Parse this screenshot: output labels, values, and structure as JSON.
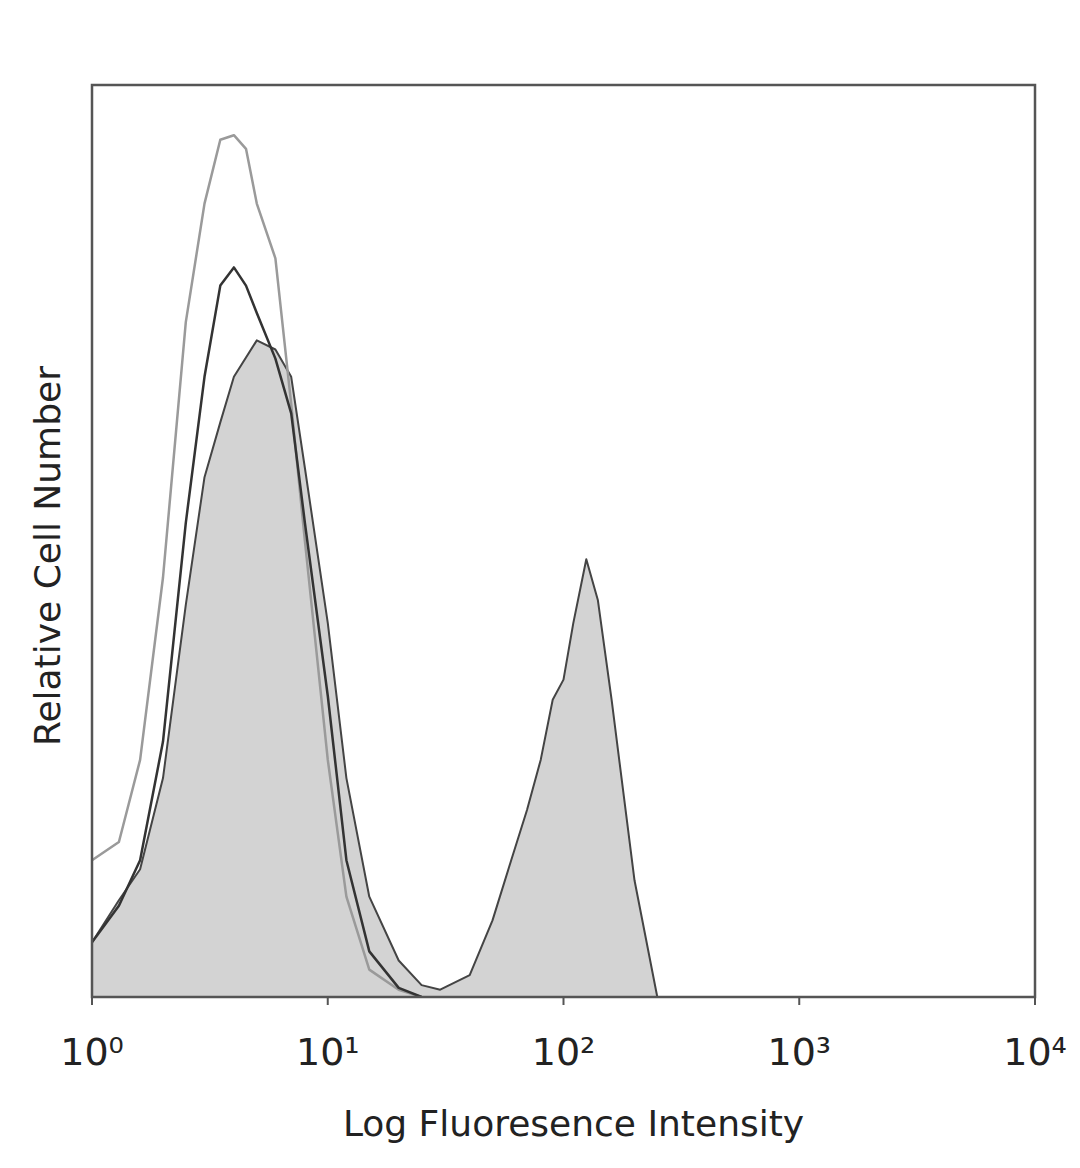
{
  "chart_data": {
    "type": "line",
    "x_label": "Log Fluoresence Intensity",
    "y_label": "Relative Cell Number",
    "log": "x",
    "tick_labels": "x",
    "xlim": [
      1,
      10000
    ],
    "ylim": [
      0,
      100
    ],
    "xticks": [
      {
        "value": 1,
        "label": "10⁰"
      },
      {
        "value": 10,
        "label": "10¹"
      },
      {
        "value": 100,
        "label": "10²"
      },
      {
        "value": 1000,
        "label": "10³"
      },
      {
        "value": 10000,
        "label": "10⁴"
      }
    ],
    "series": [
      {
        "type": "area",
        "color": "#d3d3d3",
        "x": [
          1,
          1.3,
          1.6,
          2,
          2.5,
          3,
          3.5,
          4,
          5,
          6,
          7,
          8,
          10,
          12,
          15,
          20,
          25,
          30,
          40,
          50,
          60,
          70,
          80,
          90,
          100,
          110,
          125,
          140,
          160,
          200,
          250
        ],
        "values": [
          6,
          10.6,
          14,
          24,
          43,
          57,
          63,
          68,
          72,
          71,
          68,
          58,
          41,
          24,
          11,
          4,
          1.3,
          0.8,
          2.4,
          8.4,
          15,
          20.5,
          26,
          32.6,
          34.8,
          41,
          48,
          43.5,
          32.6,
          12.8,
          0
        ]
      },
      {
        "type": "line",
        "color": "#9a9a9a",
        "x": [
          1,
          1.3,
          1.6,
          2,
          2.5,
          3,
          3.5,
          4,
          4.5,
          5,
          6,
          7,
          8,
          10,
          12,
          15,
          20,
          25
        ],
        "values": [
          15,
          17,
          26,
          46,
          74,
          87,
          94,
          94.5,
          93,
          87,
          81,
          65,
          50,
          26,
          11,
          3,
          0.8,
          0
        ]
      },
      {
        "type": "line",
        "color": "#333333",
        "x": [
          1,
          1.3,
          1.6,
          2,
          2.5,
          3,
          3.5,
          4,
          4.5,
          5,
          6,
          7,
          8,
          10,
          12,
          15,
          20,
          25
        ],
        "values": [
          6,
          10,
          15,
          28,
          52,
          68,
          78,
          80,
          78,
          75,
          70,
          64,
          52,
          33,
          15,
          5,
          1,
          0
        ]
      }
    ]
  }
}
